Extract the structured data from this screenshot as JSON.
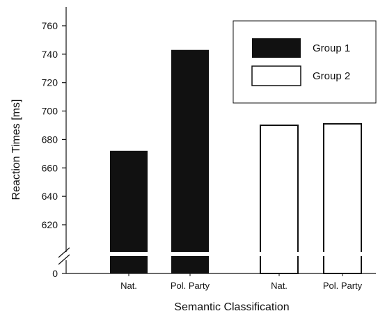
{
  "chart_data": {
    "type": "bar",
    "xlabel": "Semantic Classification",
    "ylabel": "Reaction Times [ms]",
    "ylim": [
      600,
      770
    ],
    "axis_break": true,
    "bottom_tick": "0",
    "yticks": [
      620,
      640,
      660,
      680,
      700,
      720,
      740,
      760
    ],
    "legend_position": "top-right",
    "grid": false,
    "series": [
      {
        "name": "Group 1",
        "style": "filled",
        "color": "#111111",
        "categories": [
          "Nat.",
          "Pol. Party"
        ],
        "values": [
          672,
          743
        ]
      },
      {
        "name": "Group 2",
        "style": "outline",
        "color": "#ffffff",
        "categories": [
          "Nat.",
          "Pol. Party"
        ],
        "values": [
          690,
          691
        ]
      }
    ]
  }
}
